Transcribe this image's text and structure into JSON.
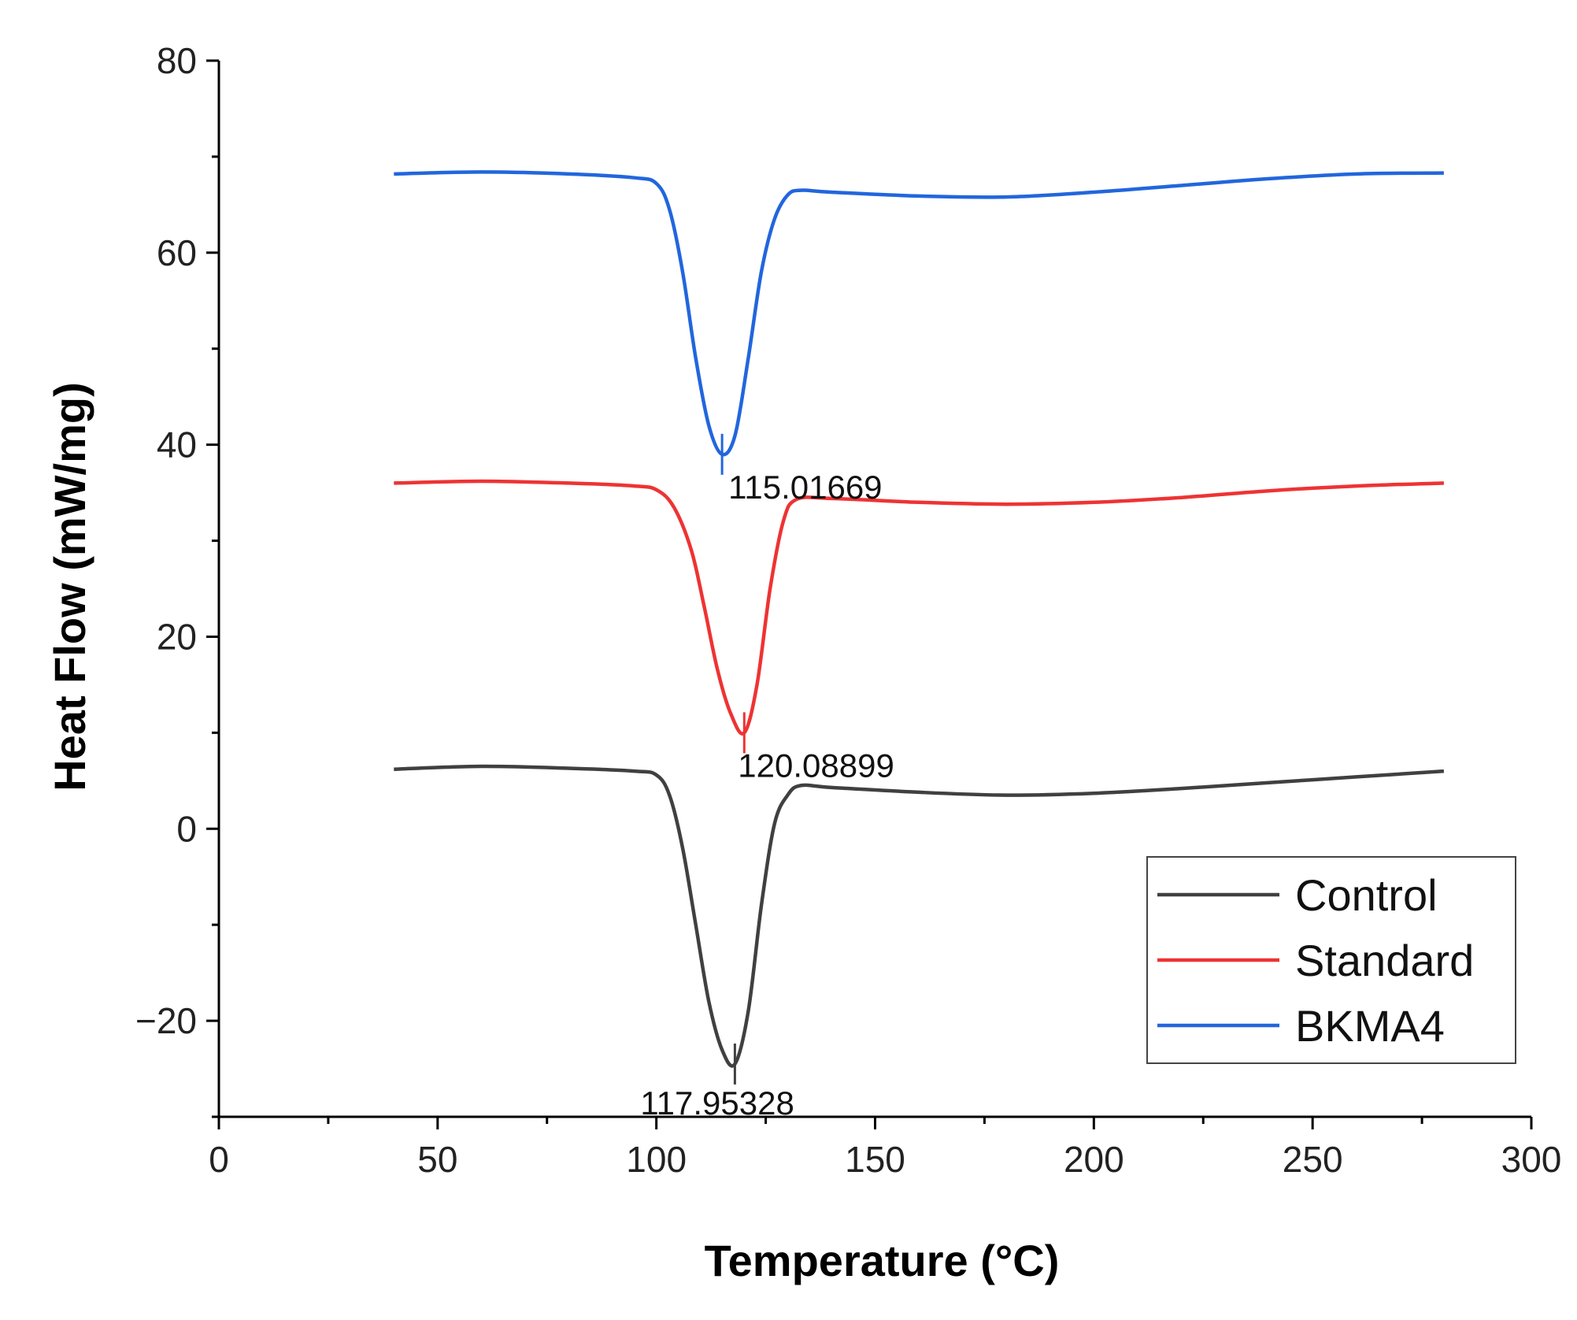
{
  "chart_data": {
    "type": "line",
    "title": "",
    "xlabel": "Temperature (°C)",
    "ylabel": "Heat Flow (mW/mg)",
    "xlim": [
      0,
      300
    ],
    "ylim": [
      -30,
      80
    ],
    "xticks": [
      0,
      50,
      100,
      150,
      200,
      250,
      300
    ],
    "xtick_labels": [
      "0",
      "50",
      "100",
      "150",
      "200",
      "250",
      "300"
    ],
    "yticks": [
      -20,
      0,
      20,
      40,
      60,
      80
    ],
    "ytick_labels": [
      "−20",
      "0",
      "20",
      "40",
      "60",
      "80"
    ],
    "grid": false,
    "legend_position": "bottom-right",
    "series": [
      {
        "name": "Control",
        "color": "#404040",
        "peak_label": "117.95328",
        "peak_x": 117.95,
        "x": [
          40,
          60,
          80,
          95,
          100,
          103,
          106,
          109,
          112,
          115,
          117.95,
          121,
          124,
          127,
          130,
          133,
          140,
          160,
          180,
          200,
          220,
          240,
          260,
          280
        ],
        "y": [
          6.2,
          6.5,
          6.3,
          6.0,
          5.6,
          3.5,
          -2.0,
          -10.0,
          -18.0,
          -23.0,
          -24.5,
          -19.0,
          -8.0,
          0.5,
          3.5,
          4.5,
          4.3,
          3.8,
          3.5,
          3.7,
          4.2,
          4.8,
          5.4,
          6.0
        ]
      },
      {
        "name": "Standard",
        "color": "#ee3333",
        "peak_label": "120.08899",
        "peak_x": 120.09,
        "x": [
          40,
          60,
          80,
          95,
          100,
          104,
          108,
          111,
          114,
          117,
          120.09,
          123,
          126,
          129,
          132,
          140,
          160,
          180,
          200,
          220,
          240,
          260,
          280
        ],
        "y": [
          36.0,
          36.2,
          36.0,
          35.7,
          35.3,
          33.5,
          29.0,
          23.0,
          16.5,
          12.0,
          10.0,
          15.0,
          25.0,
          32.0,
          34.3,
          34.4,
          34.0,
          33.8,
          34.0,
          34.5,
          35.2,
          35.7,
          36.0
        ]
      },
      {
        "name": "BKMA4",
        "color": "#2266dd",
        "peak_label": "115.01669",
        "peak_x": 115.02,
        "x": [
          40,
          60,
          80,
          95,
          100,
          103,
          106,
          109,
          112,
          115.02,
          118,
          121,
          124,
          127,
          130,
          133,
          140,
          160,
          180,
          200,
          220,
          240,
          260,
          280
        ],
        "y": [
          68.2,
          68.4,
          68.2,
          67.8,
          67.2,
          64.5,
          58.0,
          49.0,
          42.0,
          39.0,
          41.0,
          49.0,
          58.0,
          63.5,
          66.0,
          66.5,
          66.3,
          65.9,
          65.8,
          66.3,
          67.0,
          67.7,
          68.2,
          68.3
        ]
      }
    ]
  }
}
